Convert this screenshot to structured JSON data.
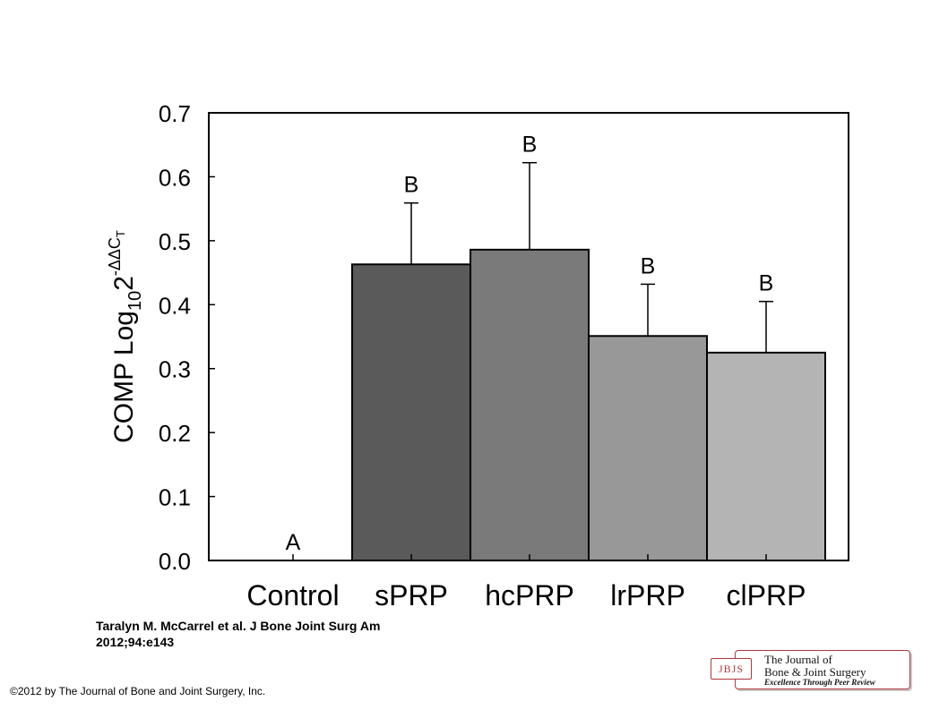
{
  "chart_data": {
    "type": "bar",
    "categories": [
      "Control",
      "sPRP",
      "hcPRP",
      "lrPRP",
      "clPRP"
    ],
    "values": [
      0.0,
      0.463,
      0.486,
      0.351,
      0.325
    ],
    "error_upper": [
      0.0,
      0.559,
      0.622,
      0.432,
      0.405
    ],
    "significance_letters": [
      "A",
      "B",
      "B",
      "B",
      "B"
    ],
    "bar_colors": [
      "#ffffff",
      "#5a5a5a",
      "#7a7a7a",
      "#989898",
      "#b4b4b4"
    ],
    "ylabel": {
      "main": "COMP Log",
      "subscript": "10",
      "base": "2",
      "superscript": "-ΔΔC",
      "superscript_sub": "T"
    },
    "yticks": [
      "0.0",
      "0.1",
      "0.2",
      "0.3",
      "0.4",
      "0.5",
      "0.6",
      "0.7"
    ],
    "ylim": [
      0,
      0.7
    ],
    "grid": false
  },
  "citation": {
    "line1": "Taralyn M. McCarrel et al. J Bone Joint Surg Am",
    "line2": "2012;94:e143"
  },
  "copyright": "©2012 by The Journal of Bone and Joint Surgery, Inc.",
  "logo": {
    "mark": "JBJS",
    "line1": "The Journal of",
    "line2": "Bone & Joint Surgery",
    "line3": "Excellence Through Peer Review"
  }
}
